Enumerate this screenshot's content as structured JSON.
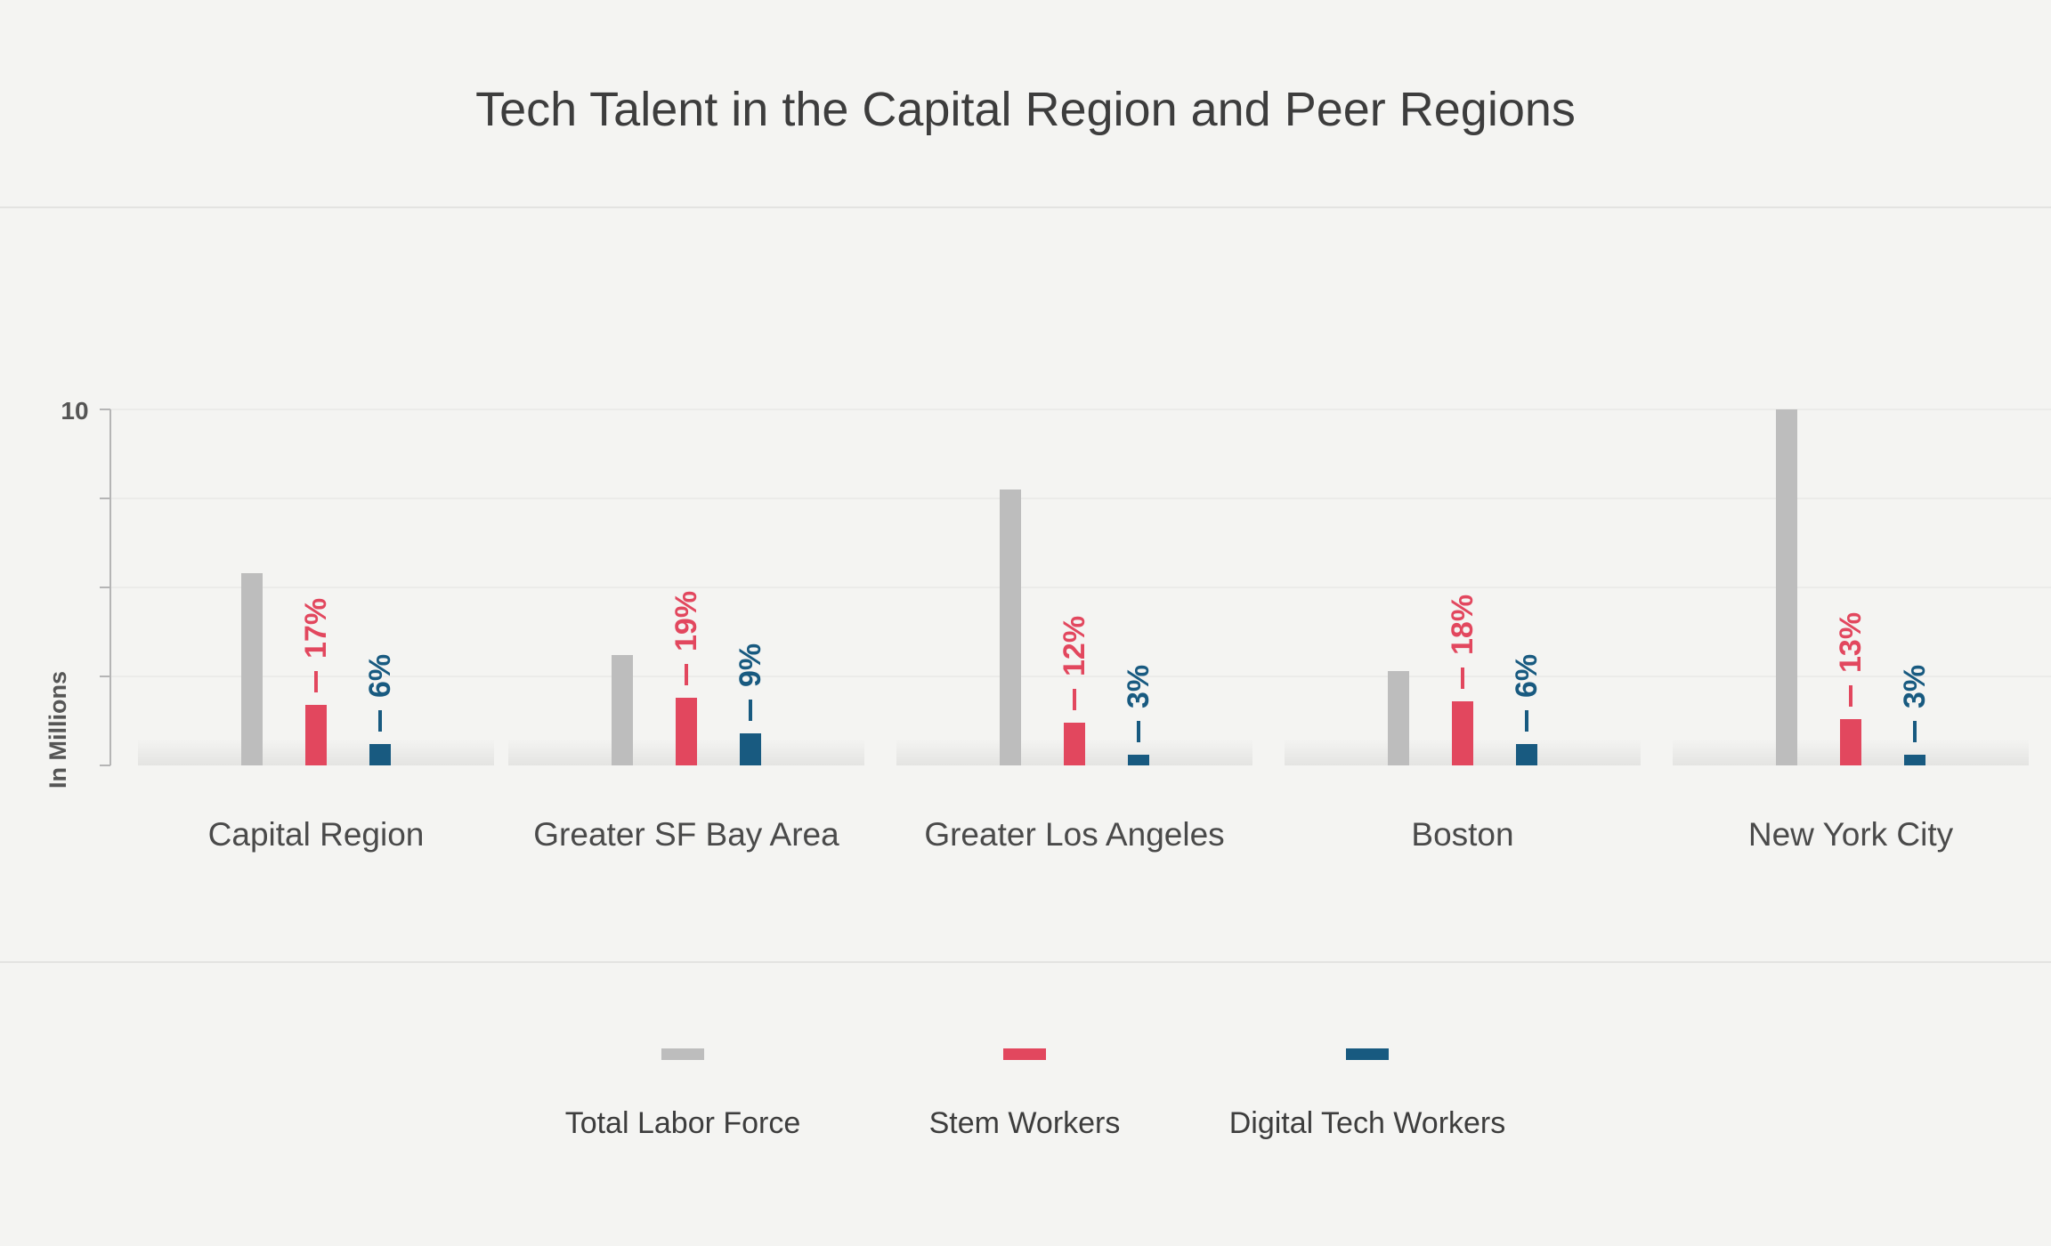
{
  "chart": {
    "title": "Tech Talent in the Capital Region and Peer Regions"
  },
  "chart_data": {
    "type": "bar",
    "title": "Tech Talent in the Capital Region and Peer Regions",
    "ylabel": "In Millions",
    "ylim": [
      0,
      10
    ],
    "yticks": [
      0,
      2.5,
      5,
      7.5,
      10
    ],
    "ytick_labels": [
      "",
      "",
      "",
      "",
      "10"
    ],
    "grid": true,
    "legend_position": "bottom-center",
    "categories": [
      "Capital Region",
      "Greater SF Bay Area",
      "Greater Los Angeles",
      "Boston",
      "New York City"
    ],
    "series": [
      {
        "name": "Total Labor Force",
        "color": "#bdbdbd",
        "values": [
          5.4,
          3.1,
          7.75,
          2.65,
          10.0
        ],
        "labels": [
          "",
          "",
          "",
          "",
          ""
        ]
      },
      {
        "name": "Stem Workers",
        "color": "#e2475e",
        "values": [
          1.7,
          1.9,
          1.2,
          1.8,
          1.3
        ],
        "labels": [
          "17%",
          "19%",
          "12%",
          "18%",
          "13%"
        ]
      },
      {
        "name": "Digital Tech Workers",
        "color": "#185a80",
        "values": [
          0.6,
          0.9,
          0.3,
          0.6,
          0.3
        ],
        "labels": [
          "6%",
          "9%",
          "3%",
          "6%",
          "3%"
        ]
      }
    ]
  }
}
